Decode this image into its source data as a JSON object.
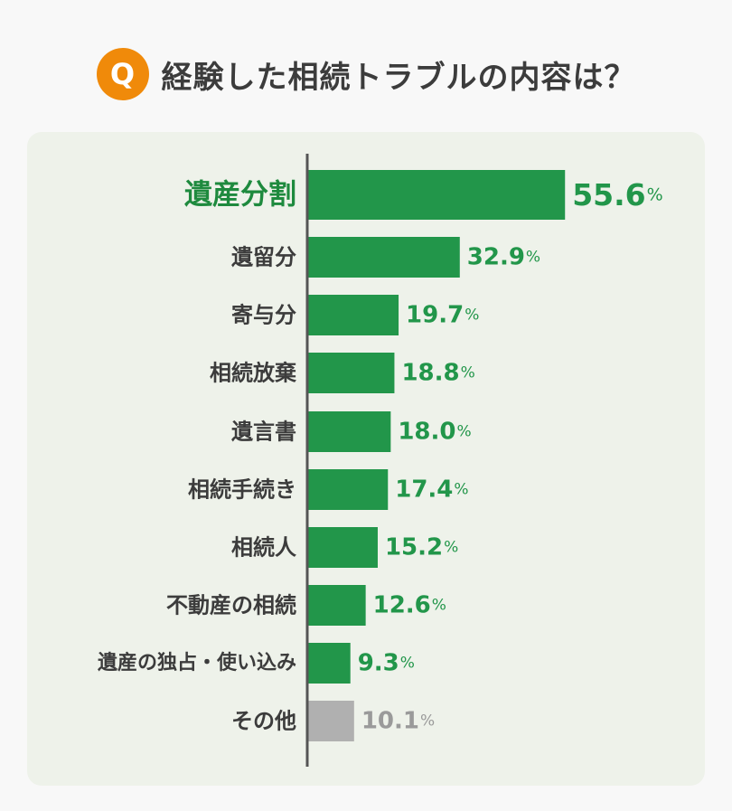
{
  "header": {
    "badge": "Q",
    "title": "経験した相続トラブルの内容は？"
  },
  "colors": {
    "bar": "#22964a",
    "bar_other": "#b0b0b0",
    "value_text": "#22964a",
    "value_text_other": "#9a9a9a",
    "label_text": "#3c3c3c",
    "label_top": "#1e8a3e",
    "axis": "#555555",
    "badge": "#f08a0a"
  },
  "chart_data": {
    "type": "bar",
    "orientation": "horizontal",
    "unit": "%",
    "categories": [
      "遺産分割",
      "遺留分",
      "寄与分",
      "相続放棄",
      "遺言書",
      "相続手続き",
      "相続人",
      "不動産の相続",
      "遺産の独占・使い込み",
      "その他"
    ],
    "values": [
      55.6,
      32.9,
      19.7,
      18.8,
      18.0,
      17.4,
      15.2,
      12.6,
      9.3,
      10.1
    ],
    "value_labels": [
      "55.6",
      "32.9",
      "19.7",
      "18.8",
      "18.0",
      "17.4",
      "15.2",
      "12.6",
      "9.3",
      "10.1"
    ],
    "highlight_index": 0,
    "other_index": 9,
    "xlim": [
      0,
      60
    ],
    "grid": false,
    "legend": "none"
  }
}
